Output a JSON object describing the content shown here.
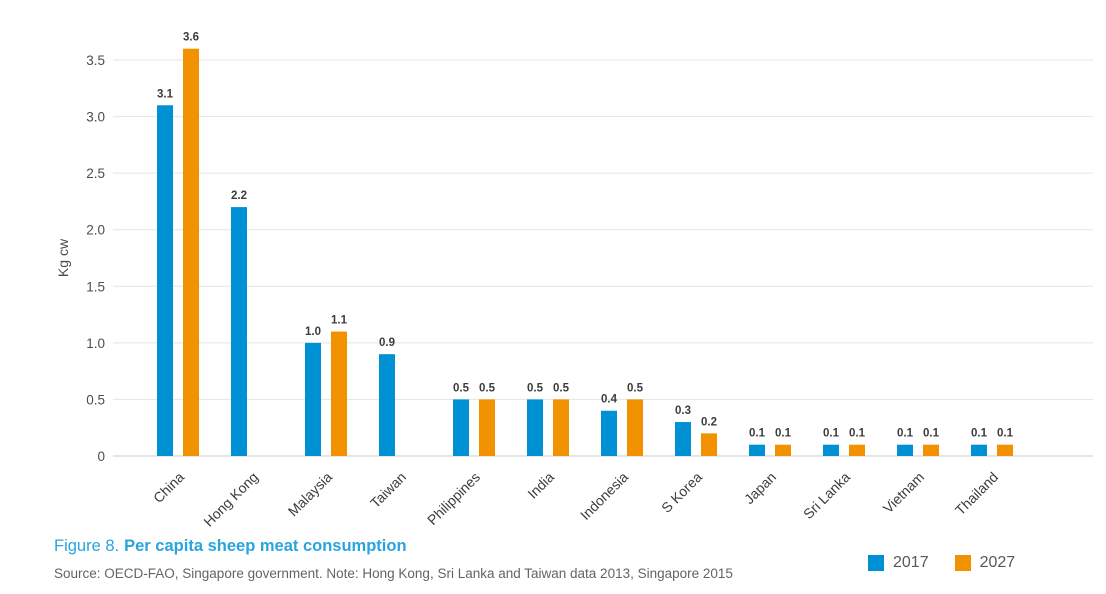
{
  "figure": {
    "caption_prefix": "Figure 8.",
    "caption_title": "Per capita sheep meat consumption",
    "source_note": "Source: OECD-FAO, Singapore government. Note: Hong Kong, Sri Lanka and Taiwan data 2013, Singapore 2015"
  },
  "colors": {
    "series_2017": "#0091d4",
    "series_2027": "#f39200",
    "grid": "#e4e4e4",
    "baseline": "#cccccc",
    "axis_text": "#4d4d4d",
    "label_text": "#3c3c3c",
    "caption_blue": "#29a4dd",
    "source_gray": "#646464"
  },
  "chart_data": {
    "type": "bar",
    "title": "Per capita sheep meat consumption",
    "ylabel": "Kg cw",
    "xlabel": "",
    "categories": [
      "China",
      "Hong Kong",
      "Malaysia",
      "Taiwan",
      "Philippines",
      "India",
      "Indonesia",
      "S Korea",
      "Japan",
      "Sri Lanka",
      "Vietnam",
      "Thailand"
    ],
    "series": [
      {
        "name": "2017",
        "color": "#0091d4",
        "values": [
          3.1,
          2.2,
          1.0,
          0.9,
          0.5,
          0.5,
          0.4,
          0.3,
          0.1,
          0.1,
          0.1,
          0.1
        ]
      },
      {
        "name": "2027",
        "color": "#f39200",
        "values": [
          3.6,
          null,
          1.1,
          null,
          0.5,
          0.5,
          0.5,
          0.2,
          0.1,
          0.1,
          0.1,
          0.1
        ]
      }
    ],
    "yticks": [
      0,
      0.5,
      1.0,
      1.5,
      2.0,
      2.5,
      3.0,
      3.5
    ],
    "ylim": [
      0,
      3.8
    ],
    "grid": true,
    "bar_labels": true,
    "legend_position": "bottom-right"
  }
}
